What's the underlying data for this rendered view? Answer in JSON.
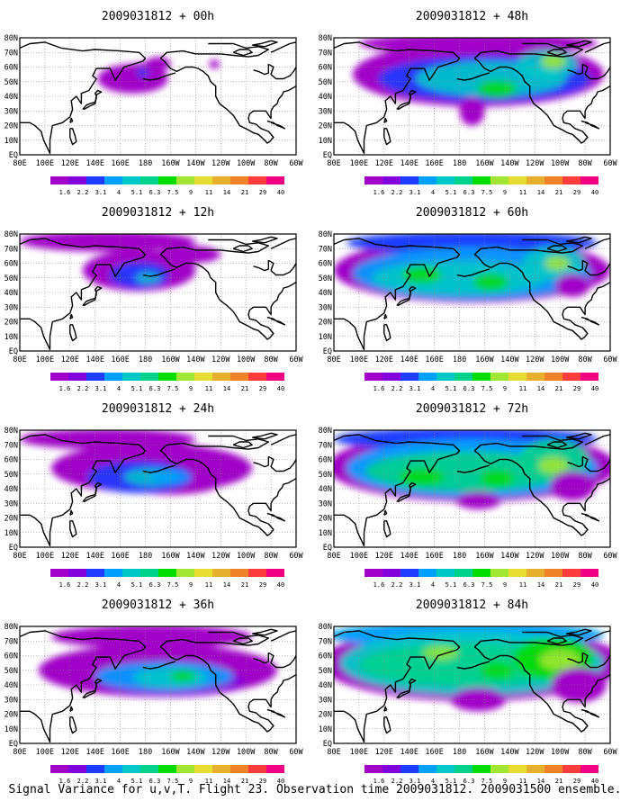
{
  "figure": {
    "caption": "Signal Variance for u,v,T. Flight 23. Observation time 2009031812. 2009031500 ensemble.",
    "panels": [
      {
        "title": "2009031812 + 00h",
        "lead_hours": 0
      },
      {
        "title": "2009031812 + 48h",
        "lead_hours": 48
      },
      {
        "title": "2009031812 + 12h",
        "lead_hours": 12
      },
      {
        "title": "2009031812 + 60h",
        "lead_hours": 60
      },
      {
        "title": "2009031812 + 24h",
        "lead_hours": 24
      },
      {
        "title": "2009031812 + 72h",
        "lead_hours": 72
      },
      {
        "title": "2009031812 + 36h",
        "lead_hours": 36
      },
      {
        "title": "2009031812 + 84h",
        "lead_hours": 84
      }
    ],
    "map": {
      "lon_labels": [
        "80E",
        "100E",
        "120E",
        "140E",
        "160E",
        "180",
        "160W",
        "140W",
        "120W",
        "100W",
        "80W",
        "60W"
      ],
      "lat_labels": [
        "80N",
        "70N",
        "60N",
        "50N",
        "40N",
        "30N",
        "20N",
        "10N",
        "EQ"
      ],
      "extent": {
        "lon_min_east": 80,
        "lon_max_east": 300,
        "lat_min": 0,
        "lat_max": 80
      }
    },
    "colorbar": {
      "labels": [
        "1.6",
        "2.2",
        "3.1",
        "4",
        "5.1",
        "6.3",
        "7.5",
        "9",
        "11",
        "14",
        "21",
        "29",
        "40"
      ],
      "colors": [
        "#a000c8",
        "#8200dc",
        "#1e3cff",
        "#00a0ff",
        "#00c8c8",
        "#00d28c",
        "#00dc00",
        "#a0e632",
        "#e6dc32",
        "#e6af2d",
        "#f08228",
        "#fa3c3c",
        "#f00082"
      ]
    }
  }
}
